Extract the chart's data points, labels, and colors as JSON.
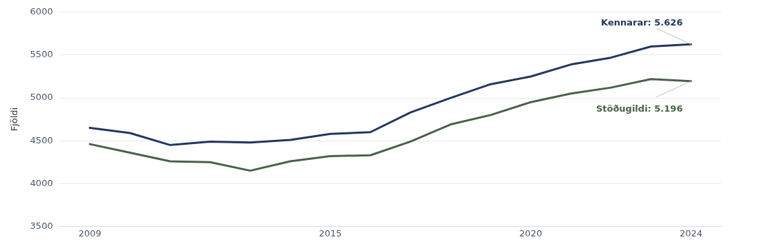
{
  "chart_data": {
    "type": "line",
    "ylabel": "Fjöldi",
    "x": [
      2009,
      2010,
      2011,
      2012,
      2013,
      2014,
      2015,
      2016,
      2017,
      2018,
      2019,
      2020,
      2021,
      2022,
      2023,
      2024
    ],
    "series": [
      {
        "color": "#22375e",
        "values": [
          4650,
          4590,
          4450,
          4490,
          4480,
          4510,
          4580,
          4600,
          4830,
          5000,
          5160,
          5250,
          5390,
          5470,
          5600,
          5626
        ]
      },
      {
        "color": "#4a604a",
        "values": [
          4460,
          4360,
          4260,
          4250,
          4150,
          4260,
          4320,
          4330,
          4490,
          4690,
          4800,
          4950,
          5050,
          5120,
          5220,
          5196
        ]
      }
    ],
    "xlim": [
      2008.25,
      2024.75
    ],
    "xticks": [
      2009,
      2015,
      2020,
      2024
    ],
    "ylim": [
      3500,
      6000
    ],
    "yticks": [
      3500,
      4000,
      4500,
      5000,
      5500,
      6000
    ],
    "grid": "y",
    "legend": false,
    "marker": "none",
    "line_style": "solid",
    "annotations": [
      {
        "text": "Kennarar: 5.626",
        "x": 2024,
        "y": 5626
      },
      {
        "text": "Stöðugildi: 5.196",
        "x": 2024,
        "y": 5196
      }
    ]
  }
}
